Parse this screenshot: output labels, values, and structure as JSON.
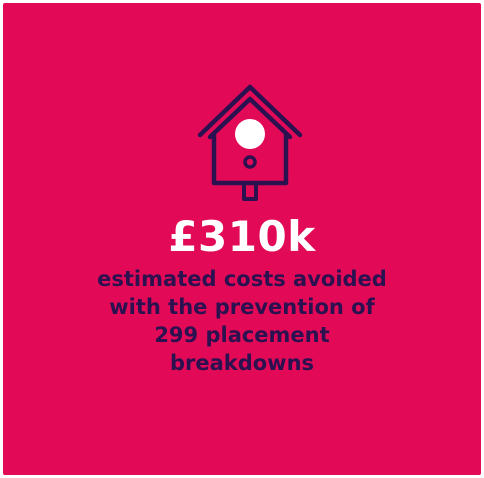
{
  "card": {
    "background_color": "#e20a57",
    "icon": "birdhouse-icon",
    "icon_color": "#2b1150",
    "stat_value": "£310k",
    "stat_color": "#ffffff",
    "description_lines": [
      "estimated costs avoided",
      "with the prevention of",
      "299 placement",
      "breakdowns"
    ],
    "description_color": "#2b1150"
  }
}
